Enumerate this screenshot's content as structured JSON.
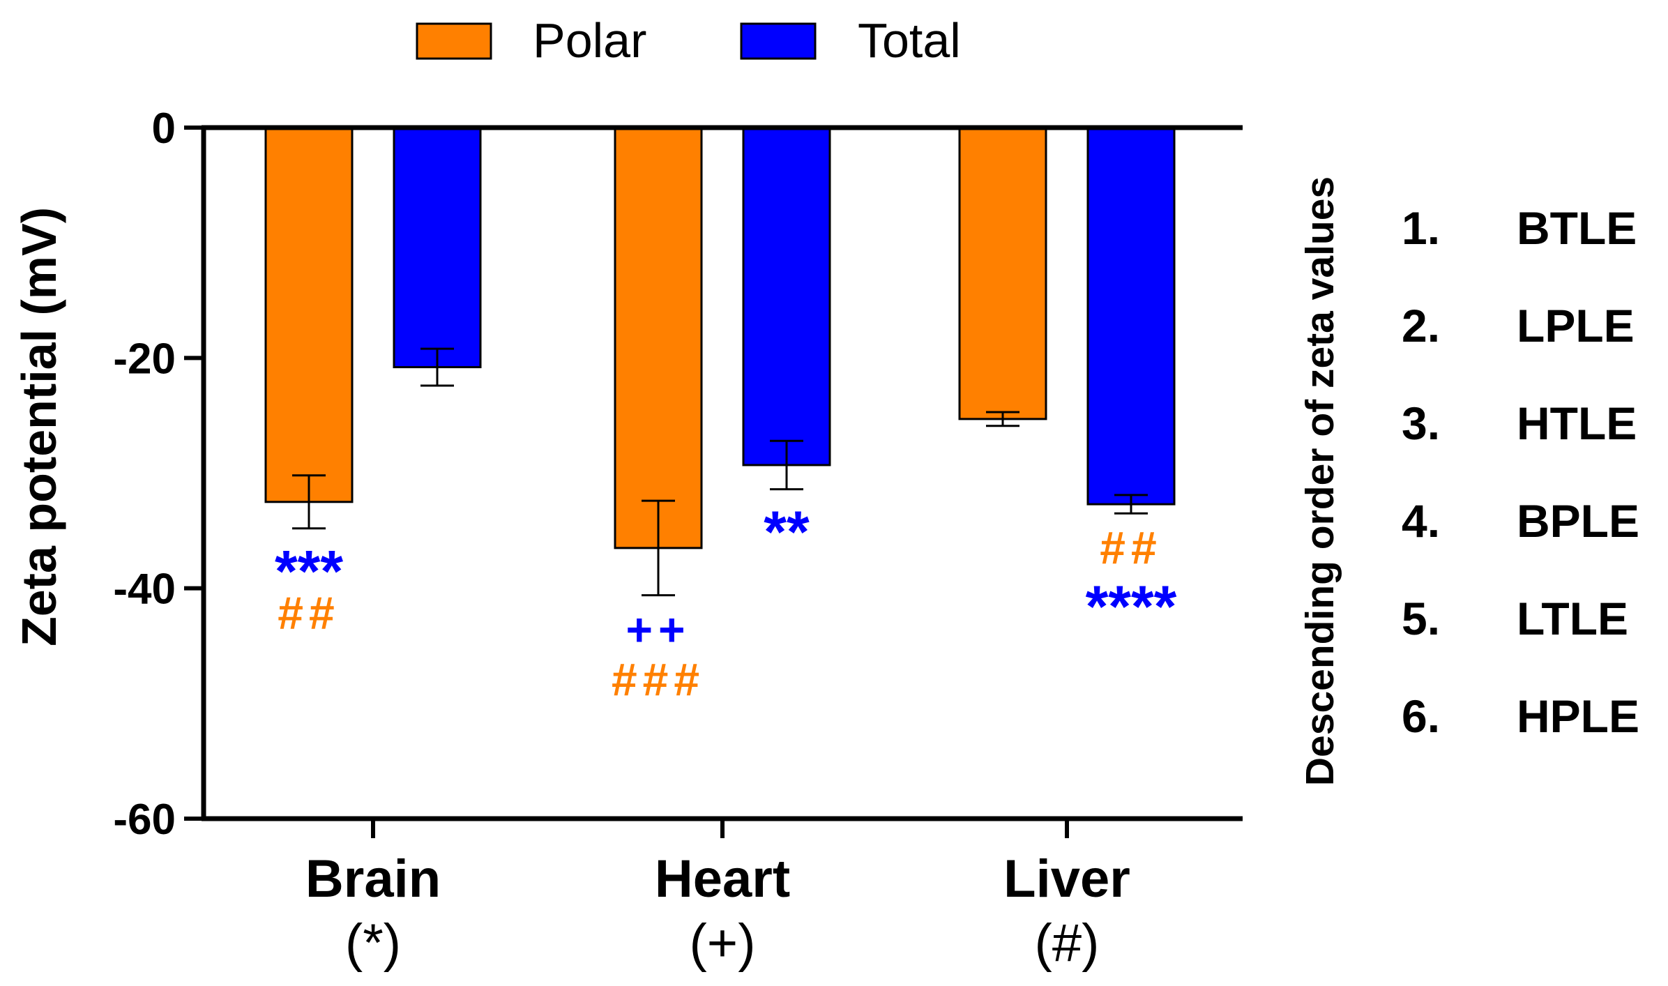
{
  "chart_data": {
    "type": "bar",
    "ylabel": "Zeta potential (mV)",
    "ylim": [
      -60,
      0
    ],
    "yticks": [
      0,
      -20,
      -40,
      -60
    ],
    "ytick_labels": [
      "0",
      "-20",
      "-40",
      "-60"
    ],
    "categories": [
      "Brain",
      "Heart",
      "Liver"
    ],
    "category_sublabels": [
      "(*)",
      "(+)",
      "(#)"
    ],
    "series": [
      {
        "name": "Polar",
        "color": "#FF8000",
        "values": [
          -32.5,
          -36.5,
          -25.3
        ],
        "errors": [
          2.3,
          4.1,
          0.6
        ]
      },
      {
        "name": "Total",
        "color": "#0000FF",
        "values": [
          -20.8,
          -29.3,
          -32.7
        ],
        "errors": [
          1.6,
          2.1,
          0.8
        ]
      }
    ],
    "legend_position": "top",
    "annotations": [
      {
        "category": 0,
        "series": 0,
        "lines": [
          {
            "text": "***",
            "color": "#0000FF"
          },
          {
            "text": "##",
            "color": "#FF8000"
          }
        ]
      },
      {
        "category": 1,
        "series": 0,
        "lines": [
          {
            "text": "++",
            "color": "#0000FF"
          },
          {
            "text": "###",
            "color": "#FF8000"
          }
        ]
      },
      {
        "category": 1,
        "series": 1,
        "lines": [
          {
            "text": "**",
            "color": "#0000FF"
          }
        ]
      },
      {
        "category": 2,
        "series": 1,
        "lines": [
          {
            "text": "##",
            "color": "#FF8000"
          },
          {
            "text": "****",
            "color": "#0000FF"
          }
        ]
      }
    ]
  },
  "side_panel": {
    "title": "Descending order of zeta values",
    "items": [
      {
        "num": "1.",
        "label": "BTLE"
      },
      {
        "num": "2.",
        "label": "LPLE"
      },
      {
        "num": "3.",
        "label": "HTLE"
      },
      {
        "num": "4.",
        "label": "BPLE"
      },
      {
        "num": "5.",
        "label": "LTLE"
      },
      {
        "num": "6.",
        "label": "HPLE"
      }
    ]
  }
}
